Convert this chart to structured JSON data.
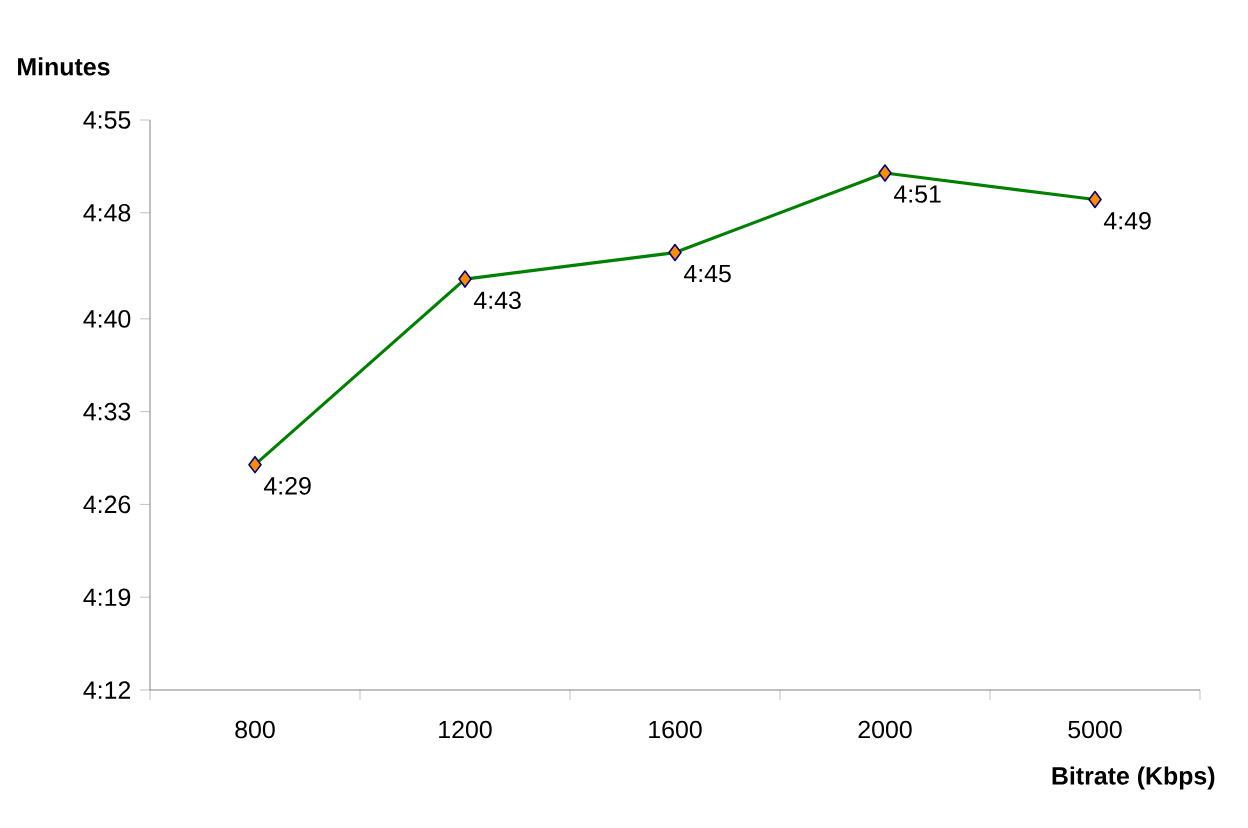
{
  "chart_data": {
    "type": "line",
    "xlabel": "Bitrate (Kbps)",
    "ylabel": "Minutes",
    "categories": [
      "800",
      "1200",
      "1600",
      "2000",
      "5000"
    ],
    "values": [
      269,
      283,
      285,
      291,
      289
    ],
    "value_labels": [
      "4:29",
      "4:43",
      "4:45",
      "4:51",
      "4:49"
    ],
    "color": "#008000",
    "marker": "diamond",
    "line_style": "solid",
    "ylim": [
      252,
      295
    ],
    "yticks": [
      {
        "value": 252,
        "label": "4:12"
      },
      {
        "value": 259,
        "label": "4:19"
      },
      {
        "value": 266,
        "label": "4:26"
      },
      {
        "value": 273,
        "label": "4:33"
      },
      {
        "value": 280,
        "label": "4:40"
      },
      {
        "value": 288,
        "label": "4:48"
      },
      {
        "value": 295,
        "label": "4:55"
      }
    ]
  }
}
